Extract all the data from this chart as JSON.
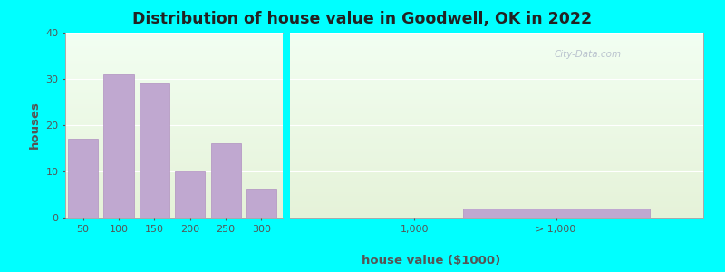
{
  "title": "Distribution of house value in Goodwell, OK in 2022",
  "xlabel": "house value ($1000)",
  "ylabel": "houses",
  "bar_positions": [
    50,
    100,
    150,
    200,
    250,
    300
  ],
  "bar_values": [
    17,
    31,
    29,
    10,
    16,
    6
  ],
  "bar_color": "#c0a8d0",
  "bar_edgecolor": "#b090c0",
  "gt1000_bar_value": 2,
  "ylim": [
    0,
    40
  ],
  "yticks": [
    0,
    10,
    20,
    30,
    40
  ],
  "outer_bg": "#00ffff",
  "title_fontsize": 12.5,
  "axis_label_fontsize": 9.5,
  "tick_fontsize": 8,
  "watermark": "City-Data.com"
}
